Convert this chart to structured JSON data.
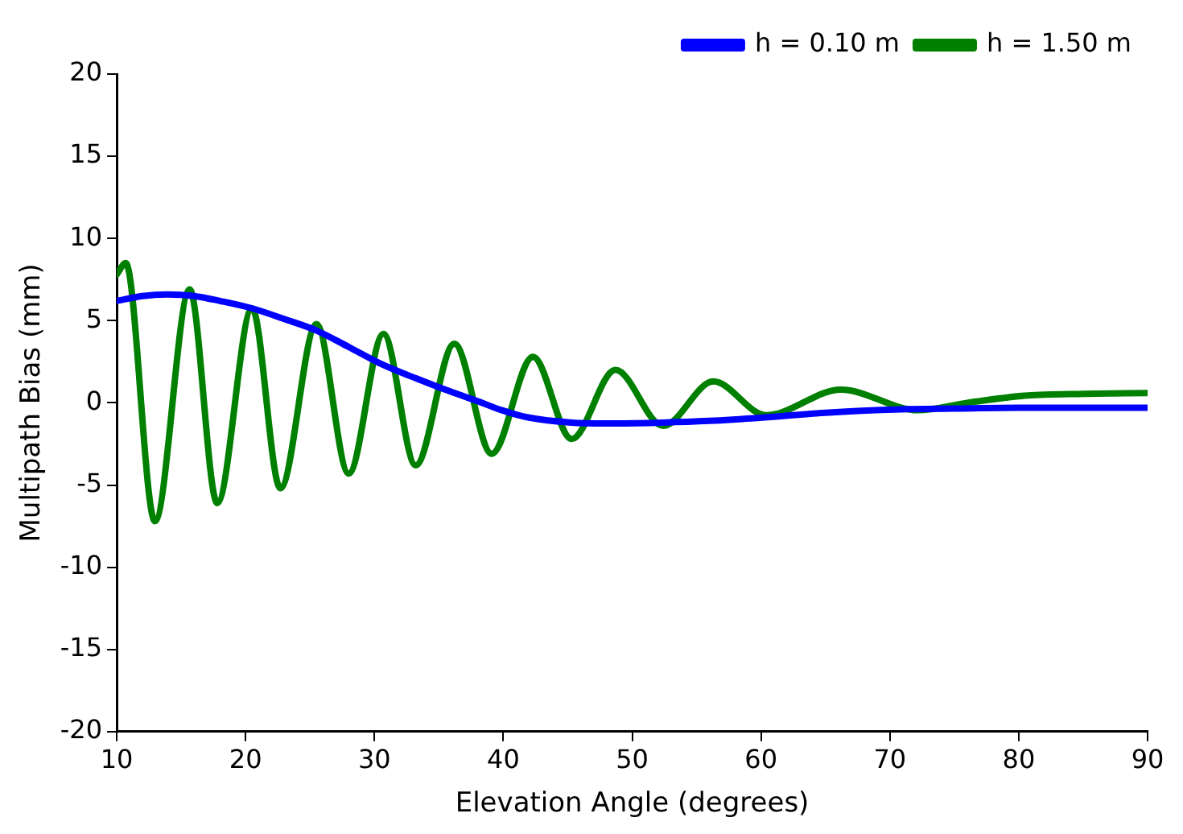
{
  "chart_data": {
    "type": "line",
    "xlabel": "Elevation Angle (degrees)",
    "ylabel": "Multipath Bias (mm)",
    "xlim": [
      10,
      90
    ],
    "xticks": [
      10,
      20,
      30,
      40,
      50,
      60,
      70,
      80,
      90
    ],
    "ylim": [
      -20,
      20
    ],
    "yticks": [
      -20,
      -15,
      -10,
      -5,
      0,
      5,
      10,
      15,
      20
    ],
    "grid": false,
    "legend": "top right",
    "marker": "none",
    "line_style": "solid",
    "series": [
      {
        "name": "h = 0.10 m",
        "color": "#0000ff",
        "x": [
          10,
          12,
          13.9,
          16,
          18,
          20.5,
          23,
          25.5,
          28,
          30.7,
          33.2,
          35.5,
          38,
          39.9,
          42,
          45.3,
          48,
          52.4,
          56,
          60.1,
          65,
          70.9,
          75,
          80,
          85,
          90
        ],
        "values": [
          6.2,
          6.5,
          6.6,
          6.5,
          6.2,
          5.75,
          5.1,
          4.4,
          3.4,
          2.3,
          1.5,
          0.8,
          0.1,
          -0.45,
          -0.9,
          -1.2,
          -1.25,
          -1.2,
          -1.1,
          -0.9,
          -0.6,
          -0.4,
          -0.35,
          -0.3,
          -0.3,
          -0.3
        ]
      },
      {
        "name": "h = 1.50 m",
        "color": "#008000",
        "x": [
          10,
          10.7,
          12.96,
          15.66,
          17.8,
          20.5,
          22.7,
          25.5,
          28,
          30.7,
          33.2,
          36.2,
          39.1,
          42.3,
          45.3,
          48.7,
          52.4,
          56.3,
          60.4,
          66.2,
          72.2,
          76,
          80.7,
          85,
          90
        ],
        "values": [
          7.8,
          8.5,
          -7.2,
          6.9,
          -6.1,
          5.75,
          -5.2,
          4.8,
          -4.3,
          4.2,
          -3.8,
          3.6,
          -3.1,
          2.8,
          -2.2,
          2.0,
          -1.4,
          1.3,
          -0.75,
          0.8,
          -0.45,
          0,
          0.45,
          0.55,
          0.6
        ]
      }
    ]
  }
}
